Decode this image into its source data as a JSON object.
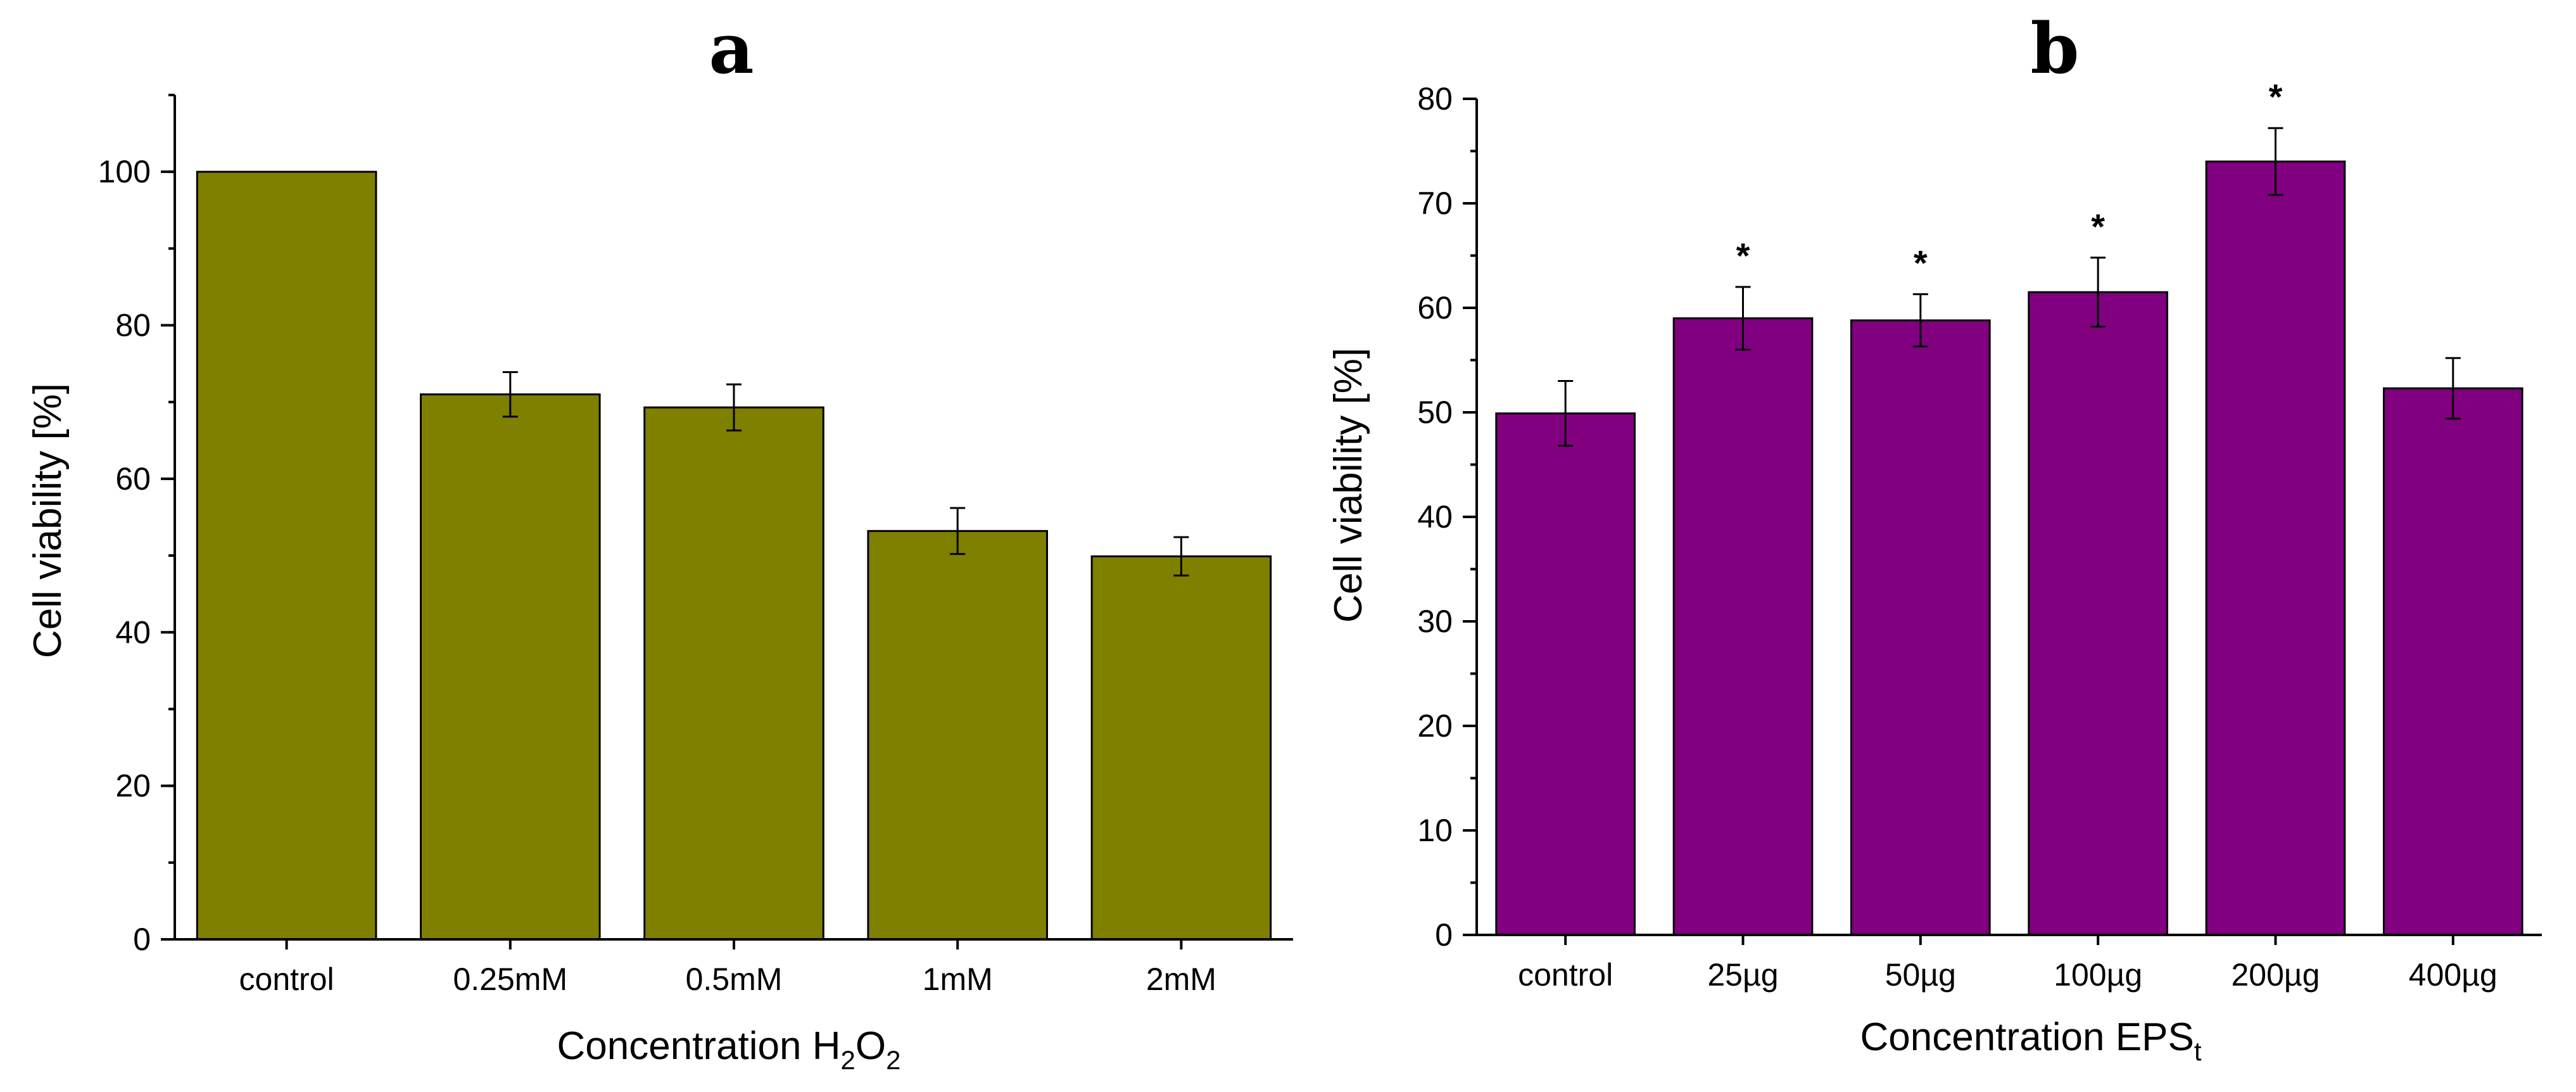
{
  "chart_data": [
    {
      "type": "bar",
      "panel_label": "a",
      "categories": [
        "control",
        "0.25mM",
        "0.5mM",
        "1mM",
        "2mM"
      ],
      "values": [
        100,
        71,
        69.3,
        53.2,
        49.9
      ],
      "errors": [
        0,
        2.9,
        3.0,
        3.0,
        2.5
      ],
      "significance": [
        "",
        "",
        "",
        "",
        ""
      ],
      "title": "",
      "xlabel": "Concentration H2O2",
      "xlabel_parts": {
        "text": "Concentration H",
        "sub1": "2",
        "mid": "O",
        "sub2": "2"
      },
      "ylabel": "Cell viability [%]",
      "ylim": [
        0,
        110
      ],
      "yticks": [
        0,
        20,
        40,
        60,
        80,
        100
      ],
      "bar_color": "#7f7f00",
      "grid": false
    },
    {
      "type": "bar",
      "panel_label": "b",
      "categories": [
        "control",
        "25µg",
        "50µg",
        "100µg",
        "200µg",
        "400µg"
      ],
      "values": [
        49.9,
        59,
        58.8,
        61.5,
        74,
        52.3
      ],
      "errors": [
        3.1,
        3.0,
        2.5,
        3.3,
        3.2,
        2.9
      ],
      "significance": [
        "",
        "*",
        "*",
        "*",
        "*",
        ""
      ],
      "title": "",
      "xlabel": "Concentration EPSt",
      "xlabel_parts": {
        "text": "Concentration EPS",
        "sub": "t"
      },
      "ylabel": "Cell viability [%]",
      "ylim": [
        0,
        80
      ],
      "yticks": [
        0,
        10,
        20,
        30,
        40,
        50,
        60,
        70,
        80
      ],
      "bar_color": "#800080",
      "grid": false
    }
  ]
}
